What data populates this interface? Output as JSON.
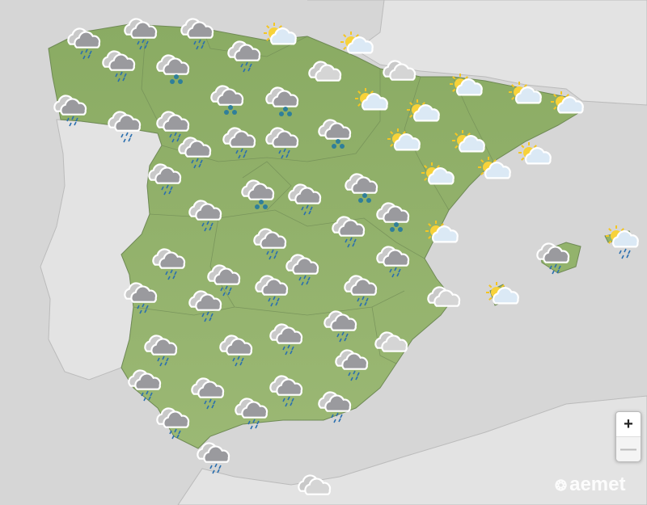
{
  "map": {
    "colors": {
      "sea": "#d6d6d6",
      "land_other": "#e3e3e3",
      "spain": "#93b36c",
      "border": "#7f9a62"
    },
    "forecast_icons": [
      "rain",
      "rain",
      "rain",
      "sun-cloud",
      "sun-cloud",
      "rain",
      "snow",
      "rain",
      "cloud",
      "cloud",
      "sun-cloud",
      "sun-cloud",
      "sun-cloud",
      "rain",
      "rain",
      "rain",
      "snow",
      "snow",
      "sun-cloud",
      "sun-cloud",
      "rain",
      "rain",
      "rain",
      "snow",
      "sun-cloud",
      "sun-cloud",
      "sun-cloud",
      "rain",
      "snow",
      "rain",
      "snow",
      "sun-cloud",
      "sun-cloud",
      "rain",
      "snow",
      "rain",
      "sun-cloud",
      "rain",
      "rain",
      "sun-cloud-rain",
      "rain",
      "rain",
      "rain",
      "rain",
      "rain",
      "rain",
      "rain",
      "cloud",
      "sun-cloud",
      "rain",
      "rain",
      "rain",
      "rain",
      "rain",
      "cloud",
      "rain",
      "rain",
      "rain",
      "rain",
      "rain",
      "rain",
      "rain",
      "rain",
      "cloud"
    ]
  },
  "controls": {
    "zoom_in": "+",
    "zoom_out": "—"
  },
  "logo": {
    "text": "aemet"
  }
}
